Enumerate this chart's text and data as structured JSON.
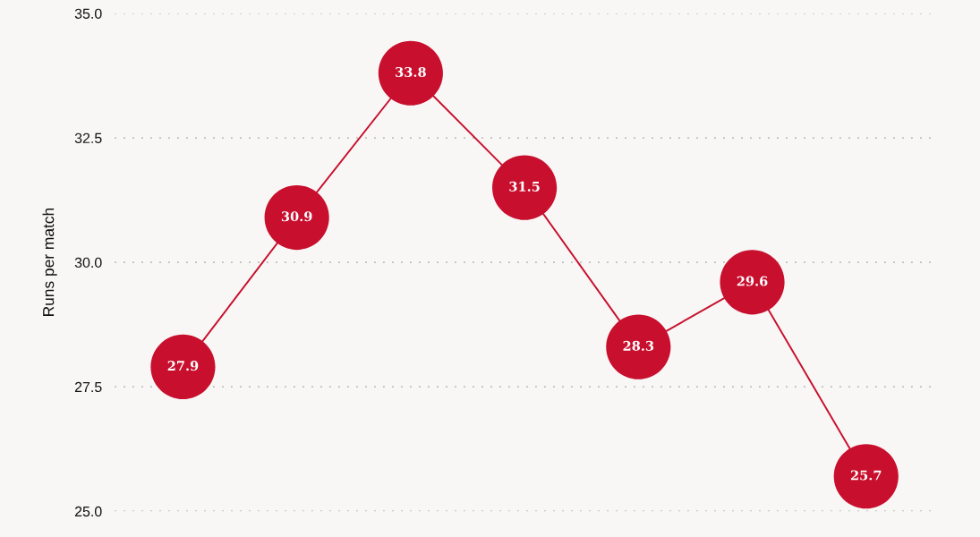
{
  "chart_data": {
    "type": "bubble",
    "ylabel": "Runs per match",
    "categories": [
      null,
      null,
      null,
      null,
      null,
      null,
      null
    ],
    "series": [
      {
        "color": "#c8102e",
        "values": [
          27.9,
          30.9,
          33.8,
          31.5,
          28.3,
          29.6,
          25.7
        ],
        "sizes": [
          1,
          1,
          1,
          1,
          1,
          1,
          1
        ]
      }
    ],
    "ylim": [
      25,
      35
    ],
    "yticks": [
      {
        "value": 25,
        "label": "25.0"
      },
      27.5,
      {
        "value": 30,
        "label": "30.0"
      },
      32.5,
      {
        "value": 35,
        "label": "35.0"
      }
    ],
    "grid": "y",
    "line_style": "solid",
    "data_labels": true,
    "tick_labels": "y"
  }
}
